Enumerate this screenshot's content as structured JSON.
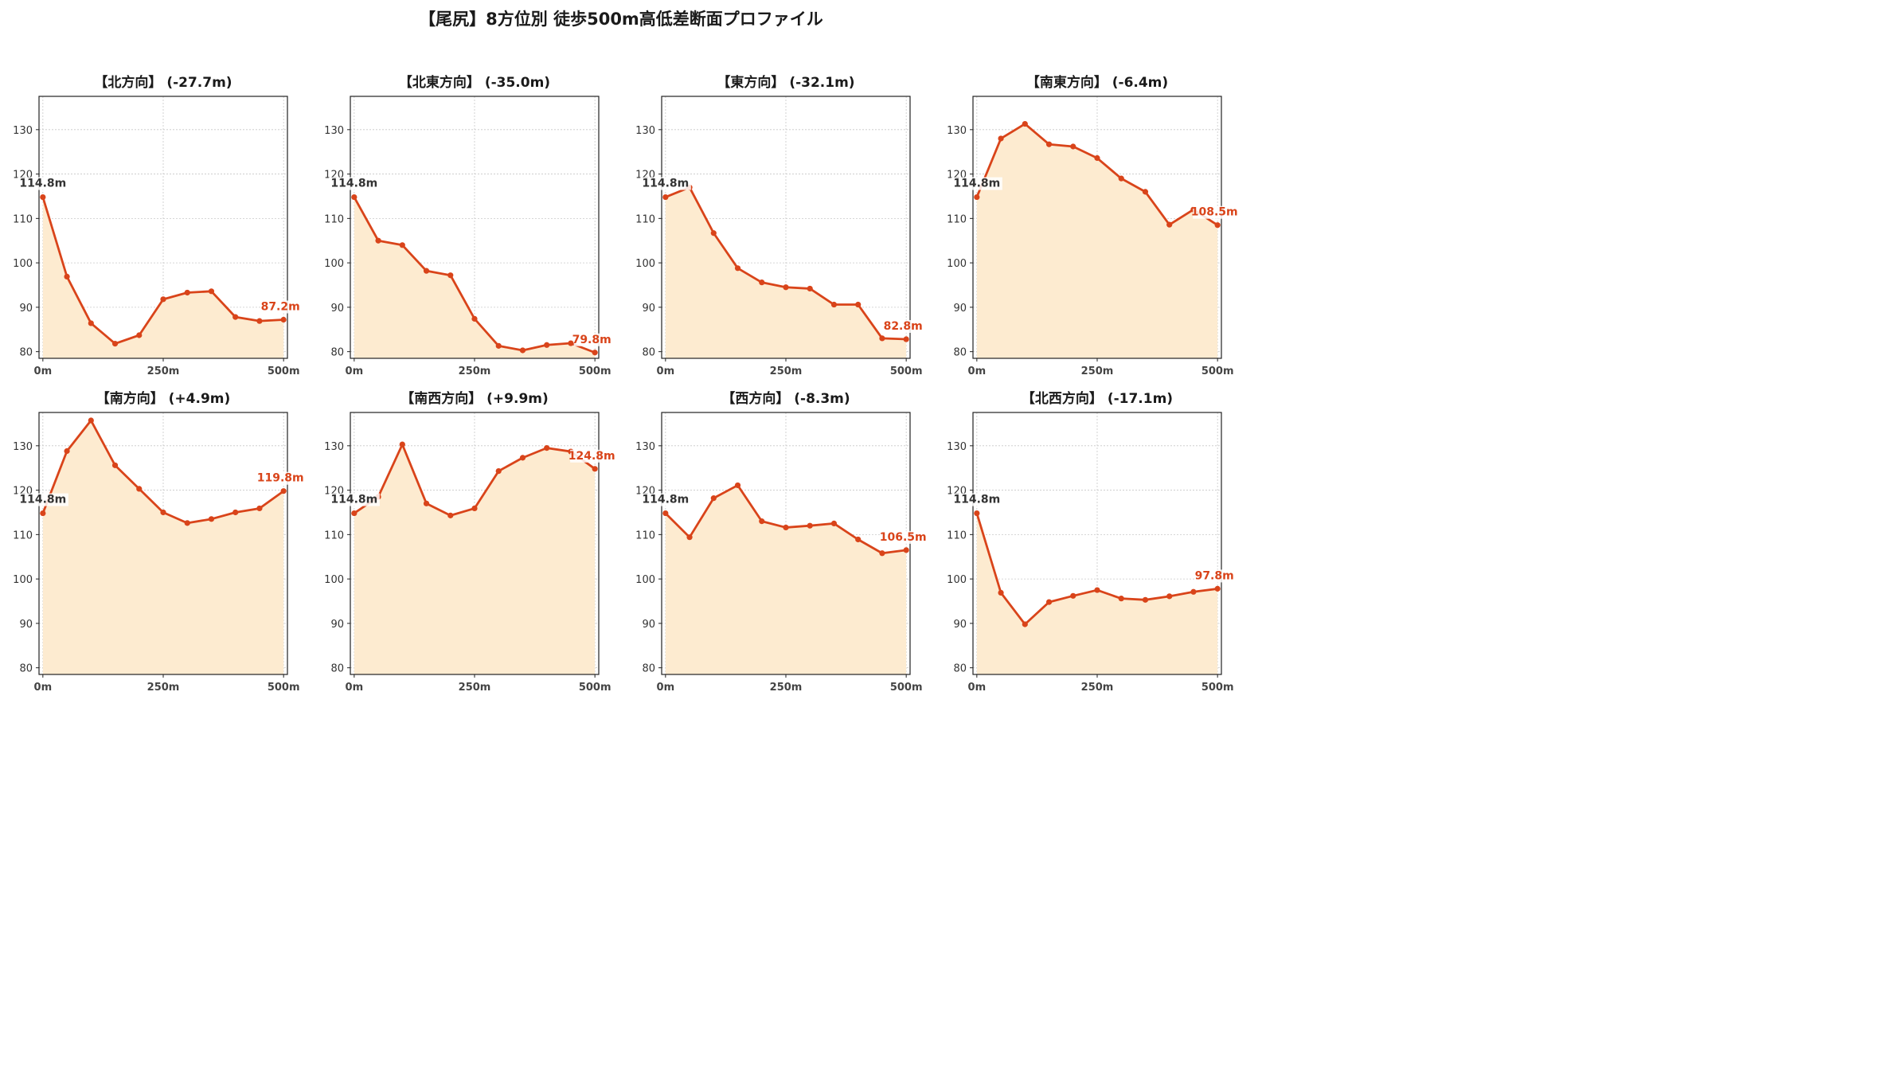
{
  "title": "【尾尻】8方位別 徒歩500m高低差断面プロファイル",
  "colors": {
    "line": "#d9441a",
    "fill": "#fdebd0",
    "start_label": "#333333",
    "end_label": "#d9441a",
    "grid": "#c8c8c8"
  },
  "chart_data": [
    {
      "type": "area",
      "title": "【北方向】 (-27.7m)",
      "x": [
        0,
        50,
        100,
        150,
        200,
        250,
        300,
        350,
        400,
        450,
        500
      ],
      "y": [
        114.8,
        96.9,
        86.4,
        81.8,
        83.7,
        91.8,
        93.3,
        93.6,
        87.8,
        86.9,
        87.2
      ],
      "start_label": "114.8m",
      "end_label": "87.2m",
      "xticks": [
        "0m",
        "250m",
        "500m"
      ],
      "yticks": [
        80,
        90,
        100,
        110,
        120,
        130
      ],
      "ylim": [
        78.5,
        137.5
      ],
      "xlim": [
        -8,
        508
      ],
      "grid": true
    },
    {
      "type": "area",
      "title": "【北東方向】 (-35.0m)",
      "x": [
        0,
        50,
        100,
        150,
        200,
        250,
        300,
        350,
        400,
        450,
        500
      ],
      "y": [
        114.8,
        105.0,
        104.0,
        98.2,
        97.2,
        87.4,
        81.3,
        80.3,
        81.5,
        81.9,
        79.8
      ],
      "start_label": "114.8m",
      "end_label": "79.8m",
      "xticks": [
        "0m",
        "250m",
        "500m"
      ],
      "yticks": [
        80,
        90,
        100,
        110,
        120,
        130
      ],
      "ylim": [
        78.5,
        137.5
      ],
      "xlim": [
        -8,
        508
      ],
      "grid": true
    },
    {
      "type": "area",
      "title": "【東方向】 (-32.1m)",
      "x": [
        0,
        50,
        100,
        150,
        200,
        250,
        300,
        350,
        400,
        450,
        500
      ],
      "y": [
        114.8,
        117.0,
        106.7,
        98.8,
        95.6,
        94.5,
        94.2,
        90.6,
        90.6,
        83.0,
        82.8
      ],
      "start_label": "114.8m",
      "end_label": "82.8m",
      "xticks": [
        "0m",
        "250m",
        "500m"
      ],
      "yticks": [
        80,
        90,
        100,
        110,
        120,
        130
      ],
      "ylim": [
        78.5,
        137.5
      ],
      "xlim": [
        -8,
        508
      ],
      "grid": true
    },
    {
      "type": "area",
      "title": "【南東方向】 (-6.4m)",
      "x": [
        0,
        50,
        100,
        150,
        200,
        250,
        300,
        350,
        400,
        450,
        500
      ],
      "y": [
        114.8,
        128.0,
        131.3,
        126.7,
        126.2,
        123.6,
        119.0,
        116.0,
        108.6,
        112.0,
        108.5
      ],
      "start_label": "114.8m",
      "end_label": "108.5m",
      "xticks": [
        "0m",
        "250m",
        "500m"
      ],
      "yticks": [
        80,
        90,
        100,
        110,
        120,
        130
      ],
      "ylim": [
        78.5,
        137.5
      ],
      "xlim": [
        -8,
        508
      ],
      "grid": true
    },
    {
      "type": "area",
      "title": "【南方向】 (+4.9m)",
      "x": [
        0,
        50,
        100,
        150,
        200,
        250,
        300,
        350,
        400,
        450,
        500
      ],
      "y": [
        114.8,
        128.8,
        135.7,
        125.6,
        120.3,
        115.0,
        112.6,
        113.5,
        115.0,
        115.9,
        119.8
      ],
      "start_label": "114.8m",
      "end_label": "119.8m",
      "xticks": [
        "0m",
        "250m",
        "500m"
      ],
      "yticks": [
        80,
        90,
        100,
        110,
        120,
        130
      ],
      "ylim": [
        78.5,
        137.5
      ],
      "xlim": [
        -8,
        508
      ],
      "grid": true
    },
    {
      "type": "area",
      "title": "【南西方向】 (+9.9m)",
      "x": [
        0,
        50,
        100,
        150,
        200,
        250,
        300,
        350,
        400,
        450,
        500
      ],
      "y": [
        114.8,
        118.5,
        130.3,
        117.0,
        114.3,
        115.9,
        124.3,
        127.3,
        129.5,
        128.7,
        124.8
      ],
      "start_label": "114.8m",
      "end_label": "124.8m",
      "xticks": [
        "0m",
        "250m",
        "500m"
      ],
      "yticks": [
        80,
        90,
        100,
        110,
        120,
        130
      ],
      "ylim": [
        78.5,
        137.5
      ],
      "xlim": [
        -8,
        508
      ],
      "grid": true
    },
    {
      "type": "area",
      "title": "【西方向】 (-8.3m)",
      "x": [
        0,
        50,
        100,
        150,
        200,
        250,
        300,
        350,
        400,
        450,
        500
      ],
      "y": [
        114.8,
        109.4,
        118.2,
        121.1,
        113.0,
        111.6,
        112.0,
        112.5,
        108.9,
        105.8,
        106.5
      ],
      "start_label": "114.8m",
      "end_label": "106.5m",
      "xticks": [
        "0m",
        "250m",
        "500m"
      ],
      "yticks": [
        80,
        90,
        100,
        110,
        120,
        130
      ],
      "ylim": [
        78.5,
        137.5
      ],
      "xlim": [
        -8,
        508
      ],
      "grid": true
    },
    {
      "type": "area",
      "title": "【北西方向】 (-17.1m)",
      "x": [
        0,
        50,
        100,
        150,
        200,
        250,
        300,
        350,
        400,
        450,
        500
      ],
      "y": [
        114.8,
        96.9,
        89.8,
        94.8,
        96.2,
        97.5,
        95.6,
        95.3,
        96.1,
        97.1,
        97.8
      ],
      "start_label": "114.8m",
      "end_label": "97.8m",
      "xticks": [
        "0m",
        "250m",
        "500m"
      ],
      "yticks": [
        80,
        90,
        100,
        110,
        120,
        130
      ],
      "ylim": [
        78.5,
        137.5
      ],
      "xlim": [
        -8,
        508
      ],
      "grid": true
    }
  ]
}
